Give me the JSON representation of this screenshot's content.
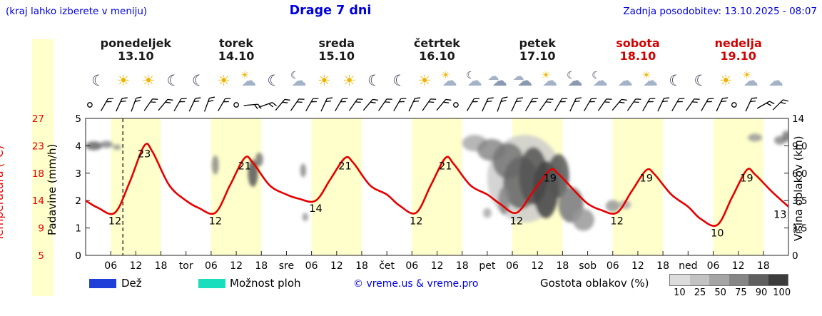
{
  "header": {
    "hint": "(kraj lahko izberete v meniju)",
    "title": "Drage 7 dni",
    "updated": "Zadnja posodobitev: 13.10.2025 - 08:07"
  },
  "colors": {
    "accent_blue": "#0000dd",
    "temp_red": "#e60000",
    "curve": "#e60000",
    "day_band": "#ffffcc",
    "weekend_red": "#d40000",
    "frame": "#222222",
    "rain": "#1f3fd8",
    "showers": "#19debd"
  },
  "axes": {
    "temp_label": "Temperatura (°C)",
    "temp_ticks": [
      27,
      23,
      18,
      14,
      9,
      5
    ],
    "precip_label": "Padavine (mm/h)",
    "precip_ticks": [
      5,
      4,
      3,
      2,
      1,
      0
    ],
    "cloud_label": "Višina oblakov (km)",
    "cloud_ticks": [
      "14",
      "9.0",
      "6.0",
      "3.5",
      "1.5",
      "0"
    ]
  },
  "days": [
    {
      "name": "ponedeljek",
      "date": "13.10",
      "weekend": false,
      "icons": [
        "moon",
        "sun",
        "sun",
        "moon"
      ]
    },
    {
      "name": "torek",
      "date": "14.10",
      "weekend": false,
      "icons": [
        "moon",
        "sun",
        "sun-cloud",
        "moon"
      ]
    },
    {
      "name": "sreda",
      "date": "15.10",
      "weekend": false,
      "icons": [
        "moon-cloud",
        "sun",
        "sun",
        "moon"
      ]
    },
    {
      "name": "četrtek",
      "date": "16.10",
      "weekend": false,
      "icons": [
        "moon",
        "sun",
        "sun-cloud",
        "moon-cloud"
      ]
    },
    {
      "name": "petek",
      "date": "17.10",
      "weekend": false,
      "icons": [
        "clouds",
        "clouds",
        "sun-cloud",
        "cloud-moon"
      ]
    },
    {
      "name": "sobota",
      "date": "18.10",
      "weekend": true,
      "icons": [
        "moon-cloud",
        "cloud",
        "sun-cloud",
        "moon"
      ]
    },
    {
      "name": "nedelja",
      "date": "19.10",
      "weekend": true,
      "icons": [
        "moon",
        "sun",
        "sun-cloud",
        "cloud"
      ]
    }
  ],
  "legend": {
    "rain": "Dež",
    "showers": "Možnost ploh",
    "copyright": "© vreme.us & vreme.pro",
    "cloud_density": "Gostota oblakov (%)",
    "scale_values": [
      "10",
      "25",
      "50",
      "75",
      "90",
      "100"
    ],
    "scale_colors": [
      "#dcdcdc",
      "#c3c3c3",
      "#a5a5a5",
      "#868686",
      "#5f5f5f",
      "#3c3c3c"
    ]
  },
  "chart_data": {
    "type": "line",
    "title": "Drage 7 dni",
    "x_unit": "hours from Monday 00:00",
    "x_range": [
      0,
      168
    ],
    "day_bands_hours": [
      6,
      18
    ],
    "now_t": 8.9,
    "temp_axis_range_c": [
      5,
      27.5
    ],
    "precip_axis_range": [
      0,
      5
    ],
    "temperature": {
      "color": "#e60000",
      "points": [
        [
          0,
          14
        ],
        [
          3,
          12.8
        ],
        [
          7,
          12
        ],
        [
          10.5,
          17
        ],
        [
          14,
          23
        ],
        [
          16,
          22
        ],
        [
          20,
          16.5
        ],
        [
          24,
          14
        ],
        [
          27,
          12.8
        ],
        [
          31,
          12
        ],
        [
          34.5,
          16.5
        ],
        [
          38,
          21
        ],
        [
          40,
          20.2
        ],
        [
          44,
          16.5
        ],
        [
          48,
          15
        ],
        [
          51,
          14.3
        ],
        [
          55,
          14
        ],
        [
          58.5,
          17.5
        ],
        [
          62,
          21
        ],
        [
          64,
          20.2
        ],
        [
          68,
          16.5
        ],
        [
          72,
          15
        ],
        [
          75,
          13.2
        ],
        [
          79,
          12
        ],
        [
          82.5,
          16.5
        ],
        [
          86,
          21
        ],
        [
          88,
          20
        ],
        [
          92,
          16.5
        ],
        [
          96,
          15
        ],
        [
          99,
          13.5
        ],
        [
          103,
          12
        ],
        [
          107,
          15.5
        ],
        [
          111,
          19
        ],
        [
          113,
          18.4
        ],
        [
          117,
          15.5
        ],
        [
          120,
          13.5
        ],
        [
          123,
          12.5
        ],
        [
          127,
          12
        ],
        [
          130.5,
          15.5
        ],
        [
          134,
          19
        ],
        [
          136,
          18.3
        ],
        [
          140,
          15
        ],
        [
          144,
          13
        ],
        [
          147,
          11
        ],
        [
          151,
          10
        ],
        [
          154.5,
          14.5
        ],
        [
          158,
          19
        ],
        [
          160,
          18.3
        ],
        [
          164,
          15.5
        ],
        [
          168,
          13
        ]
      ],
      "labels": [
        {
          "t": 7,
          "v": 12
        },
        {
          "t": 14,
          "v": 23
        },
        {
          "t": 31,
          "v": 12
        },
        {
          "t": 38,
          "v": 21
        },
        {
          "t": 55,
          "v": 14
        },
        {
          "t": 62,
          "v": 21
        },
        {
          "t": 79,
          "v": 12
        },
        {
          "t": 86,
          "v": 21
        },
        {
          "t": 103,
          "v": 12
        },
        {
          "t": 111,
          "v": 19
        },
        {
          "t": 127,
          "v": 12
        },
        {
          "t": 134,
          "v": 19
        },
        {
          "t": 151,
          "v": 10
        },
        {
          "t": 158,
          "v": 19
        },
        {
          "t": 166,
          "v": 13
        }
      ]
    },
    "clouds": [
      {
        "t": 2,
        "u": 4.0,
        "rt": 2.0,
        "ru": 0.16,
        "c": "#666666"
      },
      {
        "t": 5,
        "u": 4.05,
        "rt": 1.5,
        "ru": 0.13,
        "c": "#888888"
      },
      {
        "t": 7.5,
        "u": 3.95,
        "rt": 1.0,
        "ru": 0.1,
        "c": "#999999"
      },
      {
        "t": 31,
        "u": 3.3,
        "rt": 0.8,
        "ru": 0.35,
        "c": "#888888"
      },
      {
        "t": 40,
        "u": 3.0,
        "rt": 1.2,
        "ru": 0.5,
        "c": "#555555"
      },
      {
        "t": 41.5,
        "u": 3.5,
        "rt": 0.9,
        "ru": 0.25,
        "c": "#777777"
      },
      {
        "t": 52,
        "u": 3.1,
        "rt": 0.7,
        "ru": 0.25,
        "c": "#888888"
      },
      {
        "t": 52.5,
        "u": 1.4,
        "rt": 0.7,
        "ru": 0.15,
        "c": "#999999"
      },
      {
        "t": 105,
        "u": 2.8,
        "rt": 9.0,
        "ru": 1.6,
        "c": "#cccccc"
      },
      {
        "t": 93,
        "u": 4.1,
        "rt": 3.0,
        "ru": 0.3,
        "c": "#aaaaaa"
      },
      {
        "t": 97,
        "u": 3.85,
        "rt": 3.4,
        "ru": 0.4,
        "c": "#888888"
      },
      {
        "t": 101,
        "u": 3.45,
        "rt": 3.7,
        "ru": 0.65,
        "c": "#777777"
      },
      {
        "t": 104,
        "u": 2.65,
        "rt": 4.2,
        "ru": 0.95,
        "c": "#666666"
      },
      {
        "t": 107,
        "u": 2.9,
        "rt": 3.4,
        "ru": 1.05,
        "c": "#555555"
      },
      {
        "t": 110,
        "u": 2.4,
        "rt": 3.0,
        "ru": 1.05,
        "c": "#444444"
      },
      {
        "t": 113,
        "u": 2.9,
        "rt": 2.6,
        "ru": 0.8,
        "c": "#555555"
      },
      {
        "t": 116,
        "u": 1.85,
        "rt": 3.0,
        "ru": 0.65,
        "c": "#777777"
      },
      {
        "t": 119,
        "u": 1.3,
        "rt": 2.6,
        "ru": 0.4,
        "c": "#999999"
      },
      {
        "t": 96,
        "u": 1.55,
        "rt": 1.0,
        "ru": 0.18,
        "c": "#aaaaaa"
      },
      {
        "t": 100,
        "u": 2.0,
        "rt": 1.4,
        "ru": 0.5,
        "c": "#888888"
      },
      {
        "t": 126,
        "u": 1.8,
        "rt": 1.7,
        "ru": 0.22,
        "c": "#999999"
      },
      {
        "t": 129,
        "u": 1.85,
        "rt": 1.4,
        "ru": 0.16,
        "c": "#aaaaaa"
      },
      {
        "t": 160,
        "u": 4.3,
        "rt": 1.7,
        "ru": 0.14,
        "c": "#999999"
      },
      {
        "t": 166,
        "u": 4.2,
        "rt": 1.4,
        "ru": 0.16,
        "c": "#888888"
      },
      {
        "t": 167.5,
        "u": 4.35,
        "rt": 1.0,
        "ru": 0.2,
        "c": "#777777"
      }
    ],
    "wind": [
      {
        "t": 1,
        "a": "calm"
      },
      {
        "t": 4.5,
        "a": 30
      },
      {
        "t": 8,
        "a": 25
      },
      {
        "t": 11.5,
        "a": 20
      },
      {
        "t": 15,
        "a": 35
      },
      {
        "t": 18.5,
        "a": 40
      },
      {
        "t": 22,
        "a": 30
      },
      {
        "t": 25.5,
        "a": 25
      },
      {
        "t": 29,
        "a": 20
      },
      {
        "t": 32.5,
        "a": 30
      },
      {
        "t": 36,
        "a": "calm"
      },
      {
        "t": 39.5,
        "a": 85
      },
      {
        "t": 43,
        "a": 70
      },
      {
        "t": 46.5,
        "a": 40
      },
      {
        "t": 50,
        "a": 35
      },
      {
        "t": 53.5,
        "a": 30
      },
      {
        "t": 57,
        "a": 25
      },
      {
        "t": 60.5,
        "a": 30
      },
      {
        "t": 64,
        "a": 35
      },
      {
        "t": 67.5,
        "a": 40
      },
      {
        "t": 71,
        "a": 35
      },
      {
        "t": 74.5,
        "a": 30
      },
      {
        "t": 78,
        "a": 25
      },
      {
        "t": 81.5,
        "a": 35
      },
      {
        "t": 85,
        "a": 40
      },
      {
        "t": 88.5,
        "a": "calm"
      },
      {
        "t": 92,
        "a": 30
      },
      {
        "t": 95.5,
        "a": 25
      },
      {
        "t": 99,
        "a": 20
      },
      {
        "t": 102.5,
        "a": 25
      },
      {
        "t": 106,
        "a": 30
      },
      {
        "t": 109.5,
        "a": 35
      },
      {
        "t": 113,
        "a": 30
      },
      {
        "t": 116.5,
        "a": 25
      },
      {
        "t": 120,
        "a": 30
      },
      {
        "t": 123.5,
        "a": 35
      },
      {
        "t": 127,
        "a": 40
      },
      {
        "t": 130.5,
        "a": 35
      },
      {
        "t": 134,
        "a": 30
      },
      {
        "t": 137.5,
        "a": 25
      },
      {
        "t": 141,
        "a": 30
      },
      {
        "t": 144.5,
        "a": 35
      },
      {
        "t": 148,
        "a": 30
      },
      {
        "t": 151.5,
        "a": 25
      },
      {
        "t": 155,
        "a": "calm"
      },
      {
        "t": 158.5,
        "a": 25
      },
      {
        "t": 162,
        "a": 60
      },
      {
        "t": 165.5,
        "a": 45
      }
    ],
    "x_ticks": [
      {
        "t": 6,
        "l": "06"
      },
      {
        "t": 12,
        "l": "12"
      },
      {
        "t": 18,
        "l": "18"
      },
      {
        "t": 24,
        "l": "tor"
      },
      {
        "t": 30,
        "l": "06"
      },
      {
        "t": 36,
        "l": "12"
      },
      {
        "t": 42,
        "l": "18"
      },
      {
        "t": 48,
        "l": "sre"
      },
      {
        "t": 54,
        "l": "06"
      },
      {
        "t": 60,
        "l": "12"
      },
      {
        "t": 66,
        "l": "18"
      },
      {
        "t": 72,
        "l": "čet"
      },
      {
        "t": 78,
        "l": "06"
      },
      {
        "t": 84,
        "l": "12"
      },
      {
        "t": 90,
        "l": "18"
      },
      {
        "t": 96,
        "l": "pet"
      },
      {
        "t": 102,
        "l": "06"
      },
      {
        "t": 108,
        "l": "12"
      },
      {
        "t": 114,
        "l": "18"
      },
      {
        "t": 120,
        "l": "sob"
      },
      {
        "t": 126,
        "l": "06"
      },
      {
        "t": 132,
        "l": "12"
      },
      {
        "t": 138,
        "l": "18"
      },
      {
        "t": 144,
        "l": "ned"
      },
      {
        "t": 150,
        "l": "06"
      },
      {
        "t": 156,
        "l": "12"
      },
      {
        "t": 162,
        "l": "18"
      }
    ]
  }
}
